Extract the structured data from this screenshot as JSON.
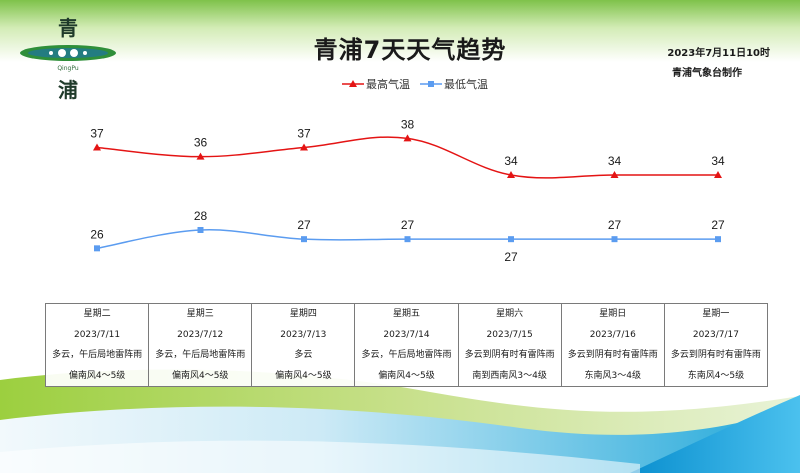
{
  "header": {
    "title": "青浦7天天气趋势",
    "date": "2023年7月11日10时",
    "credit": "青浦气象台制作",
    "logo": {
      "char_top": "青",
      "char_bottom": "浦",
      "roman": "QingPu"
    }
  },
  "legend": {
    "high_label": "最高气温",
    "low_label": "最低气温"
  },
  "colors": {
    "high": "#e41414",
    "low": "#5b9cf0",
    "grass": "#8fc84a",
    "sea": "#1ea7d9"
  },
  "chart_data": {
    "type": "line",
    "title": "青浦7天天气趋势",
    "categories": [
      "星期二",
      "星期三",
      "星期四",
      "星期五",
      "星期六",
      "星期日",
      "星期一"
    ],
    "series": [
      {
        "name": "最高气温",
        "values": [
          37,
          36,
          37,
          38,
          34,
          34,
          34
        ]
      },
      {
        "name": "最低气温",
        "values": [
          26,
          28,
          27,
          27,
          27,
          27,
          27
        ]
      }
    ],
    "ylim": [
      22,
      40
    ],
    "grid": false,
    "legend": "top-center"
  },
  "forecast": [
    {
      "weekday": "星期二",
      "date": "2023/7/11",
      "weather": "多云，午后局地雷阵雨",
      "wind": "偏南风4～5级"
    },
    {
      "weekday": "星期三",
      "date": "2023/7/12",
      "weather": "多云，午后局地雷阵雨",
      "wind": "偏南风4～5级"
    },
    {
      "weekday": "星期四",
      "date": "2023/7/13",
      "weather": "多云",
      "wind": "偏南风4～5级"
    },
    {
      "weekday": "星期五",
      "date": "2023/7/14",
      "weather": "多云，午后局地雷阵雨",
      "wind": "偏南风4～5级"
    },
    {
      "weekday": "星期六",
      "date": "2023/7/15",
      "weather": "多云到阴有时有雷阵雨",
      "wind": "南到西南风3～4级"
    },
    {
      "weekday": "星期日",
      "date": "2023/7/16",
      "weather": "多云到阴有时有雷阵雨",
      "wind": "东南风3～4级"
    },
    {
      "weekday": "星期一",
      "date": "2023/7/17",
      "weather": "多云到阴有时有雷阵雨",
      "wind": "东南风4～5级"
    }
  ]
}
